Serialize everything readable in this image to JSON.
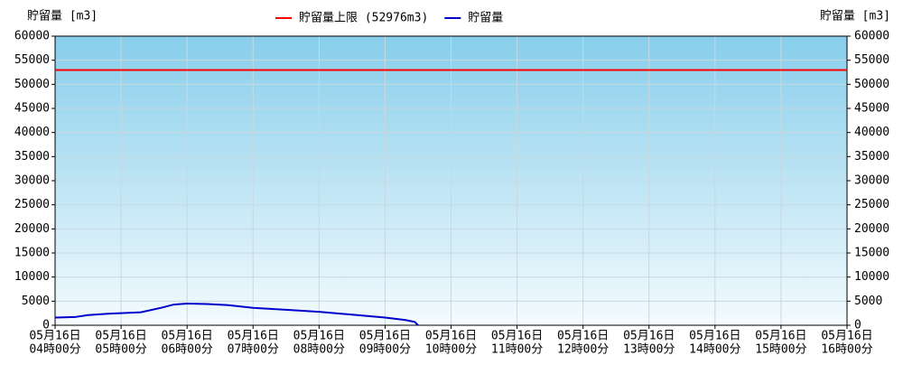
{
  "chart_data": {
    "type": "line",
    "ylabel": "貯留量 [m3]",
    "y2label": "貯留量 [m3]",
    "xlim": [
      4,
      16
    ],
    "xticks": [
      {
        "value": 4,
        "label": [
          "05月16日",
          "04時00分"
        ]
      },
      {
        "value": 5,
        "label": [
          "05月16日",
          "05時00分"
        ]
      },
      {
        "value": 6,
        "label": [
          "05月16日",
          "06時00分"
        ]
      },
      {
        "value": 7,
        "label": [
          "05月16日",
          "07時00分"
        ]
      },
      {
        "value": 8,
        "label": [
          "05月16日",
          "08時00分"
        ]
      },
      {
        "value": 9,
        "label": [
          "05月16日",
          "09時00分"
        ]
      },
      {
        "value": 10,
        "label": [
          "05月16日",
          "10時00分"
        ]
      },
      {
        "value": 11,
        "label": [
          "05月16日",
          "11時00分"
        ]
      },
      {
        "value": 12,
        "label": [
          "05月16日",
          "12時00分"
        ]
      },
      {
        "value": 13,
        "label": [
          "05月16日",
          "13時00分"
        ]
      },
      {
        "value": 14,
        "label": [
          "05月16日",
          "14時00分"
        ]
      },
      {
        "value": 15,
        "label": [
          "05月16日",
          "15時00分"
        ]
      },
      {
        "value": 16,
        "label": [
          "05月16日",
          "16時00分"
        ]
      }
    ],
    "ylim": [
      0,
      60000
    ],
    "yticks": [
      0,
      5000,
      10000,
      15000,
      20000,
      25000,
      30000,
      35000,
      40000,
      45000,
      50000,
      55000,
      60000
    ],
    "y2lim": [
      0,
      60000
    ],
    "y2ticks": [
      0,
      5000,
      10000,
      15000,
      20000,
      25000,
      30000,
      35000,
      40000,
      45000,
      50000,
      55000,
      60000
    ],
    "grid": true,
    "series": [
      {
        "name": "貯留量上限 (52976m3)",
        "color": "#ff0000",
        "x": [
          4,
          16
        ],
        "values": [
          52976,
          52976
        ]
      },
      {
        "name": "貯留量",
        "color": "#0000cc",
        "x": [
          4.0,
          4.3,
          4.5,
          4.8,
          5.0,
          5.3,
          5.6,
          5.8,
          6.0,
          6.3,
          6.6,
          7.0,
          7.5,
          8.0,
          8.5,
          9.0,
          9.3,
          9.45,
          9.5
        ],
        "values": [
          1600,
          1700,
          2100,
          2400,
          2500,
          2700,
          3600,
          4300,
          4500,
          4400,
          4200,
          3600,
          3200,
          2800,
          2200,
          1600,
          1100,
          700,
          0
        ]
      }
    ]
  }
}
